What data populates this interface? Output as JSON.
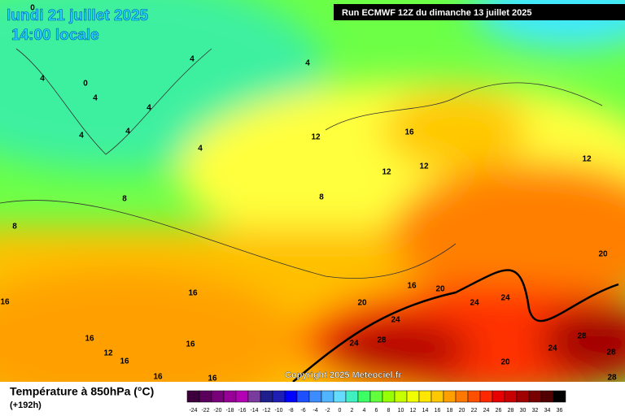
{
  "header": {
    "date": "lundi 21 juillet 2025",
    "time": "14:00 locale",
    "run": "Run ECMWF 12Z du dimanche 13 juillet 2025"
  },
  "map": {
    "contour_labels": [
      0,
      4,
      0,
      4,
      4,
      4,
      4,
      4,
      4,
      4,
      8,
      8,
      12,
      16,
      12,
      12,
      12,
      8,
      20,
      16,
      20,
      20,
      24,
      24,
      24,
      16,
      16,
      16,
      12,
      16,
      16,
      28,
      24,
      28,
      24,
      28,
      20,
      16,
      16,
      28
    ],
    "copyright": "Copyright 2025 Meteociel.fr"
  },
  "legend": {
    "title": "Température à 850hPa (°C)",
    "lead": "(+192h)",
    "ticks": [
      -24,
      -22,
      -20,
      -18,
      -16,
      -14,
      -12,
      -10,
      -8,
      -6,
      -4,
      -2,
      0,
      2,
      4,
      6,
      8,
      10,
      12,
      14,
      16,
      18,
      20,
      22,
      24,
      26,
      28,
      30,
      32,
      34,
      36
    ],
    "colors": [
      "#3c003c",
      "#5a005a",
      "#780078",
      "#960096",
      "#b400b4",
      "#7a3c9c",
      "#1e1e8c",
      "#1e1eb4",
      "#0000ff",
      "#1e50ff",
      "#3c8cff",
      "#50b4ff",
      "#64dcff",
      "#40f0c0",
      "#3cff64",
      "#64ff3c",
      "#96ff00",
      "#c8ff00",
      "#f0ff00",
      "#ffe600",
      "#ffc800",
      "#ffa000",
      "#ff7800",
      "#ff5000",
      "#ff2800",
      "#e60000",
      "#c80000",
      "#a00000",
      "#780000",
      "#500000",
      "#000000"
    ]
  }
}
